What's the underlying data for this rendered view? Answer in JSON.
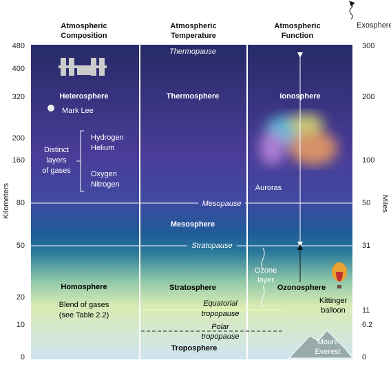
{
  "headers": {
    "composition": [
      "Atmospheric",
      "Composition"
    ],
    "temperature": [
      "Atmospheric",
      "Temperature"
    ],
    "function": [
      "Atmospheric",
      "Function"
    ],
    "exosphere": "Exosphere"
  },
  "axes": {
    "left_title": "Kilometers",
    "right_title": "Miles",
    "left_labels": [
      "480",
      "400",
      "320",
      "200",
      "160",
      "80",
      "50",
      "20",
      "10",
      "0"
    ],
    "right_labels": [
      "300",
      "200",
      "100",
      "50",
      "31",
      "11",
      "6.2",
      "0"
    ]
  },
  "composition": {
    "heterosphere": "Heterosphere",
    "mark_lee": "Mark Lee",
    "distinct": [
      "Distinct",
      "layers",
      "of gases"
    ],
    "light_gases": [
      "Hydrogen",
      "Helium"
    ],
    "heavy_gases": [
      "Oxygen",
      "Nitrogen"
    ],
    "homosphere": "Homosphere",
    "blend": [
      "Blend of gases",
      "(see Table 2.2)"
    ]
  },
  "temperature": {
    "thermopause": "Thermopause",
    "thermosphere": "Thermosphere",
    "mesopause": "Mesopause",
    "mesosphere": "Mesosphere",
    "stratopause": "Stratopause",
    "stratosphere": "Stratosphere",
    "equatorial": [
      "Equatorial",
      "tropopause"
    ],
    "polar": [
      "Polar",
      "tropopause"
    ],
    "troposphere": "Troposphere"
  },
  "function": {
    "ionosphere": "Ionosphere",
    "auroras": "Auroras",
    "ozone_layer": [
      "Ozone",
      "layer"
    ],
    "ozonosphere": "Ozonosphere",
    "balloon": [
      "Kittinger",
      "balloon"
    ],
    "everest": [
      "Mount",
      "Everest"
    ]
  }
}
